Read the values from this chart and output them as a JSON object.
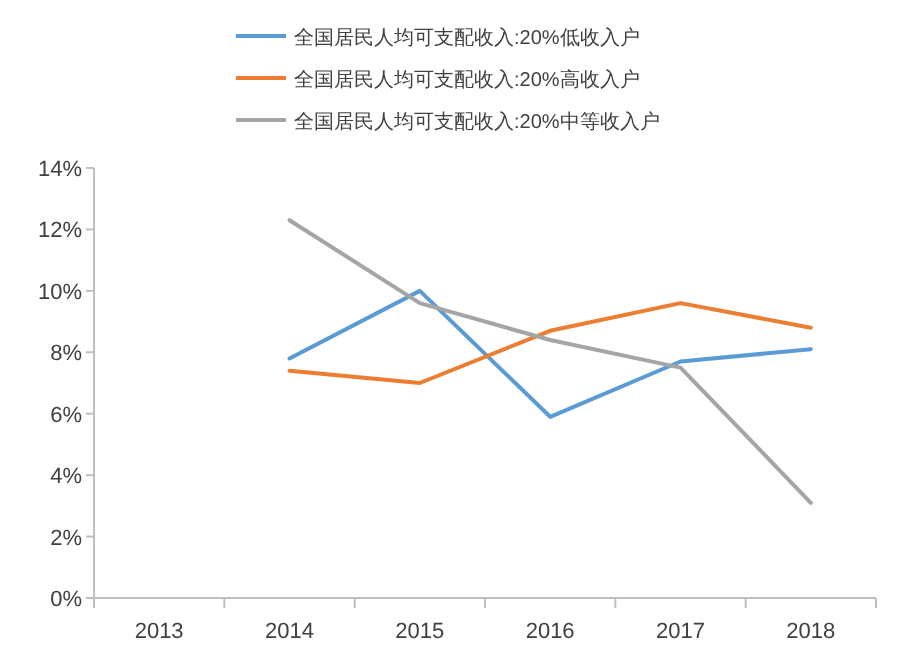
{
  "chart_data": {
    "type": "line",
    "categories": [
      "2013",
      "2014",
      "2015",
      "2016",
      "2017",
      "2018"
    ],
    "series": [
      {
        "name": "全国居民人均可支配收入:20%低收入户",
        "color": "#5b9bd5",
        "values": [
          null,
          7.8,
          10.0,
          5.9,
          7.7,
          8.1
        ]
      },
      {
        "name": "全国居民人均可支配收入:20%高收入户",
        "color": "#ed7d31",
        "values": [
          null,
          7.4,
          7.0,
          8.7,
          9.6,
          8.8
        ]
      },
      {
        "name": "全国居民人均可支配收入:20%中等收入户",
        "color": "#a5a5a5",
        "values": [
          null,
          12.3,
          9.6,
          8.4,
          7.5,
          3.1
        ]
      }
    ],
    "ylim": [
      0,
      14
    ],
    "yticks": [
      {
        "value": 0,
        "label": "0%"
      },
      {
        "value": 2,
        "label": "2%"
      },
      {
        "value": 4,
        "label": "4%"
      },
      {
        "value": 6,
        "label": "6%"
      },
      {
        "value": 8,
        "label": "8%"
      },
      {
        "value": 10,
        "label": "10%"
      },
      {
        "value": 12,
        "label": "12%"
      },
      {
        "value": 14,
        "label": "14%"
      }
    ],
    "legend": "top",
    "grid": false,
    "marker": "none",
    "line_style": "solid"
  }
}
